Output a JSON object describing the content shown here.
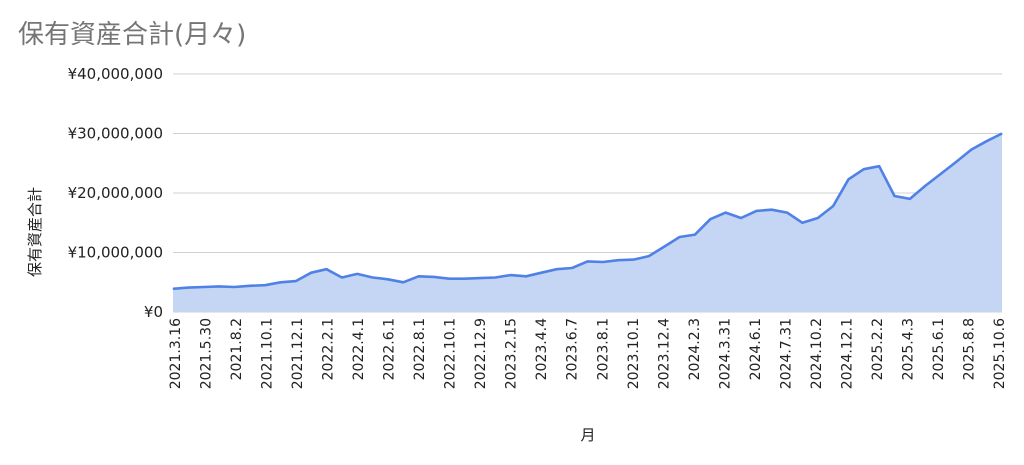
{
  "chart_data": {
    "type": "area",
    "title": "保有資産合計(月々)",
    "xlabel": "月",
    "ylabel": "保有資産合計",
    "ylim": [
      0,
      40000000
    ],
    "y_ticks": [
      0,
      10000000,
      20000000,
      30000000,
      40000000
    ],
    "y_tick_labels": [
      "¥0",
      "¥10,000,000",
      "¥20,000,000",
      "¥30,000,000",
      "¥40,000,000"
    ],
    "x_tick_labels": [
      "2021.3.16",
      "2021.5.30",
      "2021.8.2",
      "2021.10.1",
      "2021.12.1",
      "2022.2.1",
      "2022.4.1",
      "2022.6.1",
      "2022.8.1",
      "2022.10.1",
      "2022.12.9",
      "2023.2.15",
      "2023.4.4",
      "2023.6.7",
      "2023.8.1",
      "2023.10.1",
      "2023.12.4",
      "2024.2.3",
      "2024.3.31",
      "2024.6.1",
      "2024.7.31",
      "2024.10.2",
      "2024.12.1",
      "2025.2.2",
      "2025.4.3",
      "2025.6.1",
      "2025.8.8",
      "2025.10.6"
    ],
    "values": [
      3900000,
      4100000,
      4200000,
      4300000,
      4200000,
      4400000,
      4500000,
      5000000,
      5200000,
      6600000,
      7200000,
      5800000,
      6400000,
      5800000,
      5500000,
      5000000,
      6000000,
      5900000,
      5600000,
      5600000,
      5700000,
      5800000,
      6200000,
      6000000,
      6600000,
      7200000,
      7400000,
      8500000,
      8400000,
      8700000,
      8800000,
      9400000,
      11000000,
      12600000,
      13000000,
      15600000,
      16700000,
      15800000,
      17000000,
      17200000,
      16700000,
      15000000,
      15800000,
      17800000,
      22300000,
      24000000,
      24500000,
      19500000,
      19000000,
      21200000,
      23200000,
      25200000,
      27300000,
      28700000,
      30000000
    ],
    "grid": true,
    "line_color": "#4f81e6",
    "fill_color": "#c5d6f5",
    "grid_color": "#d0d0d0"
  }
}
